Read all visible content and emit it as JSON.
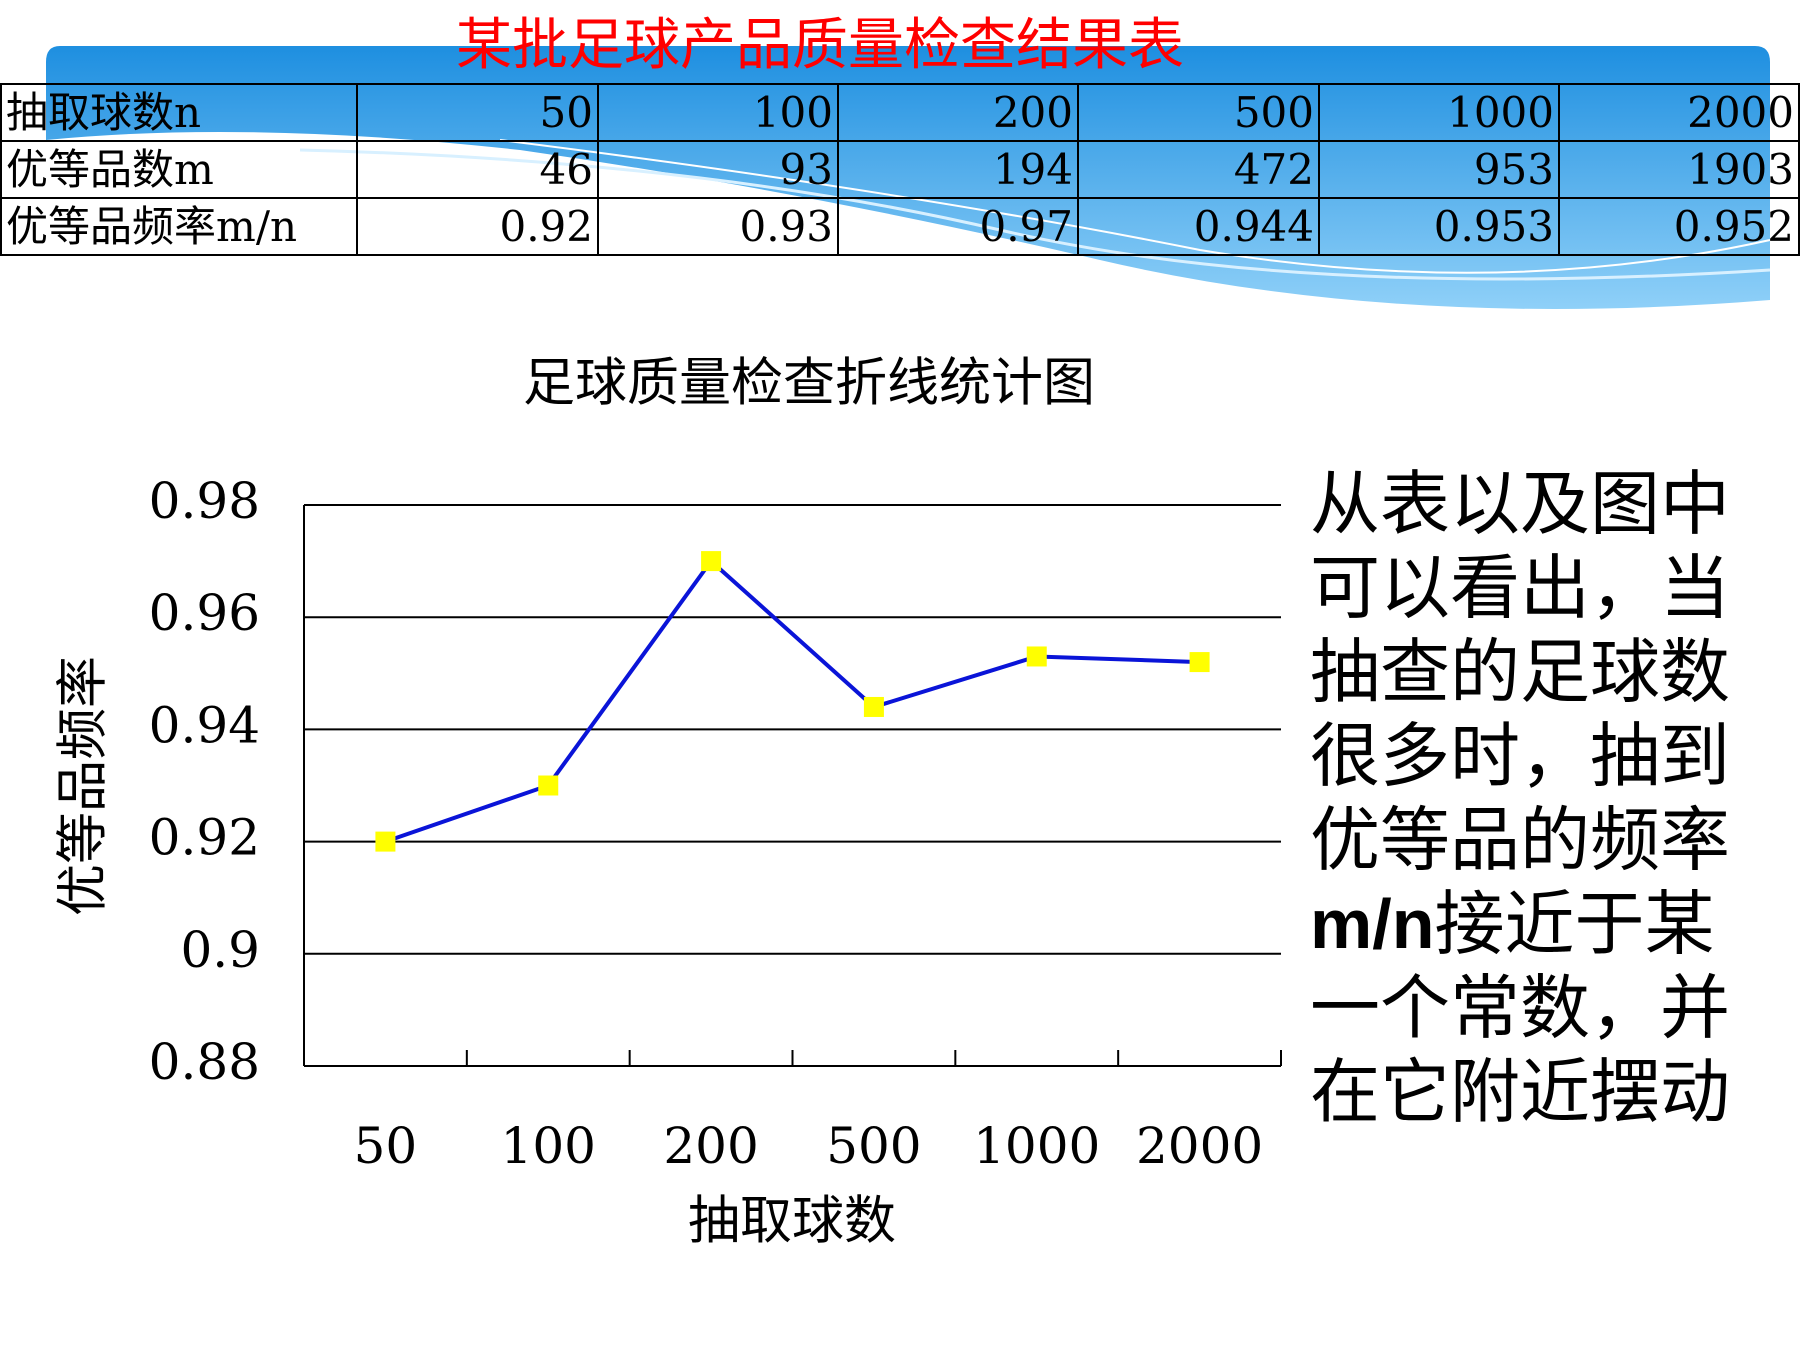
{
  "title": "某批足球产品质量检查结果表",
  "table": {
    "rows": [
      [
        "抽取球数n",
        50,
        100,
        200,
        500,
        1000,
        2000
      ],
      [
        "优等品数m",
        46,
        93,
        194,
        472,
        953,
        1903
      ],
      [
        "优等品频率m/n",
        0.92,
        0.93,
        0.97,
        0.944,
        0.953,
        0.952
      ]
    ]
  },
  "chart_data": {
    "type": "line",
    "title": "足球质量检查折线统计图",
    "x_label": "抽取球数",
    "y_label": "优等品频率",
    "categories": [
      "50",
      "100",
      "200",
      "500",
      "1000",
      "2000"
    ],
    "series": [
      {
        "color": "#0a14d8",
        "marker_color": "#ffff00",
        "values": [
          0.92,
          0.93,
          0.97,
          0.944,
          0.953,
          0.952
        ]
      }
    ],
    "ylim": [
      0.88,
      0.98
    ],
    "yticks": [
      0.88,
      0.9,
      0.92,
      0.94,
      0.96,
      0.98
    ],
    "grid": true
  },
  "note": [
    "从表以及图中可以看出，当抽查的足球数很多时，抽到优等品的频率",
    "m/n",
    "接近于某一个常数，并在它附近摆动"
  ]
}
